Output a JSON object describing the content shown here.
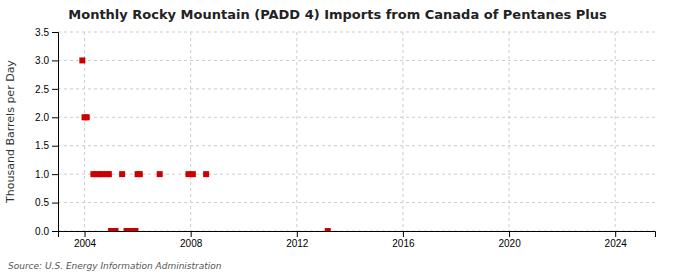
{
  "chart_data": {
    "type": "scatter",
    "title": "Monthly Rocky Mountain (PADD 4) Imports from Canada of Pentanes Plus",
    "ylabel": "Thousand Barrels per Day",
    "annotations": [
      "Source: U.S. Energy Information Administration"
    ],
    "color": "#cc0000",
    "marker": "square",
    "grid": true,
    "x": [
      2003.917,
      2004.0,
      2004.083,
      2004.333,
      2004.417,
      2004.583,
      2004.667,
      2004.833,
      2004.917,
      2005.0,
      2005.167,
      2005.417,
      2005.583,
      2005.75,
      2005.917,
      2006.0,
      2006.083,
      2006.833,
      2007.917,
      2008.083,
      2008.583,
      2013.167
    ],
    "values": [
      3.0,
      2.0,
      2.0,
      1.0,
      1.0,
      1.0,
      1.0,
      1.0,
      1.0,
      0.0,
      0.0,
      1.0,
      0.0,
      0.0,
      0.0,
      1.0,
      1.0,
      1.0,
      1.0,
      1.0,
      1.0,
      0.0
    ],
    "xlim": [
      2003.0,
      2025.5
    ],
    "ylim": [
      0.0,
      3.5
    ],
    "xticks": [
      2004,
      2008,
      2012,
      2016,
      2020,
      2024
    ],
    "yticks": [
      {
        "value": 0.0,
        "label": "0.0"
      },
      0.5,
      {
        "value": 1.0,
        "label": "1.0"
      },
      1.5,
      {
        "value": 2.0,
        "label": "2.0"
      },
      2.5,
      {
        "value": 3.0,
        "label": "3.0"
      },
      3.5
    ]
  }
}
